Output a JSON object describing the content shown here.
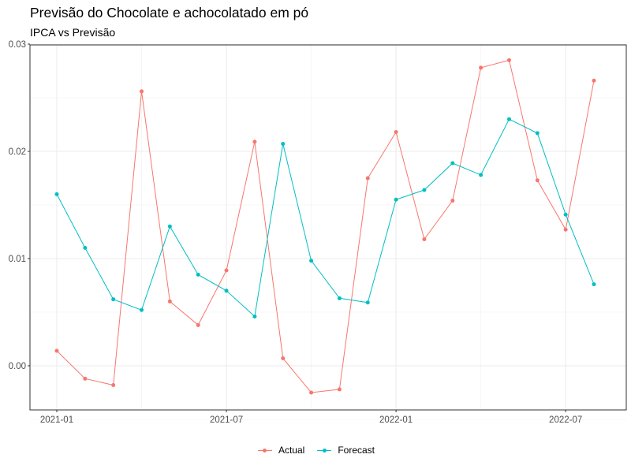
{
  "chart_data": {
    "type": "line",
    "title": "Previsão do Chocolate e achocolatado em pó",
    "subtitle": "IPCA vs Previsão",
    "xlabel": "",
    "ylabel": "",
    "x": [
      "2021-01",
      "2021-02",
      "2021-03",
      "2021-04",
      "2021-05",
      "2021-06",
      "2021-07",
      "2021-08",
      "2021-09",
      "2021-10",
      "2021-11",
      "2021-12",
      "2022-01",
      "2022-02",
      "2022-03",
      "2022-04",
      "2022-05",
      "2022-06",
      "2022-07",
      "2022-08"
    ],
    "x_ticks": [
      "2021-01",
      "2021-07",
      "2022-01",
      "2022-07"
    ],
    "y_ticks": [
      "0.00",
      "0.01",
      "0.02",
      "0.03"
    ],
    "ylim": [
      -0.0042,
      0.0302
    ],
    "grid": true,
    "legend_position": "bottom",
    "series": [
      {
        "name": "Actual",
        "color": "#F8766D",
        "values": [
          0.0014,
          -0.0012,
          -0.0018,
          0.0256,
          0.006,
          0.0038,
          0.0089,
          0.0209,
          0.0007,
          -0.0025,
          -0.0022,
          0.0175,
          0.0218,
          0.0118,
          0.0154,
          0.0278,
          0.0285,
          0.0173,
          0.0127,
          0.0266
        ]
      },
      {
        "name": "Forecast",
        "color": "#00BFC4",
        "values": [
          0.016,
          0.011,
          0.0062,
          0.0052,
          0.013,
          0.0085,
          0.007,
          0.0046,
          0.0207,
          0.0098,
          0.0063,
          0.0059,
          0.0155,
          0.0164,
          0.0189,
          0.0178,
          0.023,
          0.0217,
          0.0141,
          0.0076
        ]
      }
    ]
  }
}
